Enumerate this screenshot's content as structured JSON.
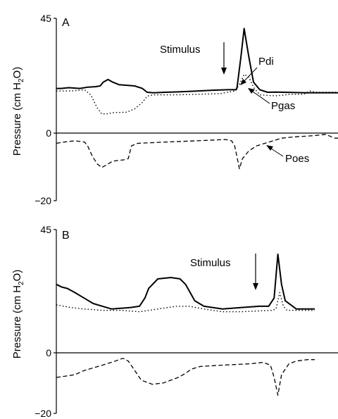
{
  "chart_data": [
    {
      "type": "line",
      "panel_label": "A",
      "ylabel_main": "Pressure (cm H",
      "ylabel_sub": "2",
      "ylabel_end": "O)",
      "ylim": [
        -20,
        45
      ],
      "yticks": [
        "45",
        "0",
        "−20"
      ],
      "grid": false,
      "stimulus_label": "Stimulus",
      "series": [
        {
          "name": "Pdi",
          "style": "solid",
          "points": [
            [
              0,
              17.5
            ],
            [
              3,
              17.5
            ],
            [
              8,
              17.8
            ],
            [
              15,
              17.5
            ],
            [
              20,
              18
            ],
            [
              25,
              18.2
            ],
            [
              28,
              18.5
            ],
            [
              30,
              20
            ],
            [
              33,
              21
            ],
            [
              36,
              20
            ],
            [
              40,
              19
            ],
            [
              50,
              18.5
            ],
            [
              55,
              17.5
            ],
            [
              58,
              16
            ],
            [
              62,
              15.8
            ],
            [
              70,
              16
            ],
            [
              80,
              16.2
            ],
            [
              90,
              16.5
            ],
            [
              100,
              16.8
            ],
            [
              110,
              17
            ],
            [
              115,
              17
            ],
            [
              115.5,
              18
            ],
            [
              118,
              30
            ],
            [
              120,
              41
            ],
            [
              123,
              30
            ],
            [
              126,
              20
            ],
            [
              130,
              17
            ],
            [
              135,
              16
            ],
            [
              140,
              16.1
            ],
            [
              160,
              15.8
            ],
            [
              180,
              15.8
            ]
          ]
        },
        {
          "name": "Pgas",
          "style": "dotted",
          "points": [
            [
              0,
              16.5
            ],
            [
              10,
              16.5
            ],
            [
              18,
              17
            ],
            [
              22,
              15
            ],
            [
              26,
              10
            ],
            [
              29,
              7.5
            ],
            [
              32,
              7.5
            ],
            [
              36,
              8
            ],
            [
              45,
              8.2
            ],
            [
              50,
              9.5
            ],
            [
              55,
              12
            ],
            [
              58,
              14.5
            ],
            [
              62,
              15
            ],
            [
              75,
              15
            ],
            [
              90,
              15.2
            ],
            [
              105,
              15.5
            ],
            [
              114,
              16.5
            ],
            [
              117,
              19
            ],
            [
              120,
              23
            ],
            [
              123,
              22
            ],
            [
              126,
              18
            ],
            [
              130,
              15
            ],
            [
              140,
              14.6
            ],
            [
              150,
              15.2
            ],
            [
              158,
              15.2
            ],
            [
              162,
              16.5
            ],
            [
              166,
              16
            ],
            [
              180,
              16
            ]
          ]
        },
        {
          "name": "Poes",
          "style": "dashed",
          "points": [
            [
              0,
              -4
            ],
            [
              5,
              -3.5
            ],
            [
              12,
              -3
            ],
            [
              18,
              -3.5
            ],
            [
              20,
              -5
            ],
            [
              23,
              -9
            ],
            [
              26,
              -12
            ],
            [
              29,
              -13.5
            ],
            [
              32,
              -12.5
            ],
            [
              36,
              -11
            ],
            [
              43,
              -10.5
            ],
            [
              46,
              -10
            ],
            [
              48,
              -5
            ],
            [
              52,
              -4
            ],
            [
              70,
              -3.5
            ],
            [
              90,
              -3
            ],
            [
              108,
              -2.5
            ],
            [
              112,
              -3
            ],
            [
              114,
              -5
            ],
            [
              116,
              -11
            ],
            [
              117,
              -14
            ],
            [
              119,
              -10
            ],
            [
              123,
              -7
            ],
            [
              128,
              -5
            ],
            [
              136,
              -3.5
            ],
            [
              144,
              -2
            ],
            [
              152,
              -1.5
            ],
            [
              165,
              -1
            ],
            [
              172,
              -0.5
            ],
            [
              178,
              -2
            ],
            [
              180,
              -2
            ]
          ]
        }
      ],
      "annotations": [
        "Pdi",
        "Pgas",
        "Poes"
      ]
    },
    {
      "type": "line",
      "panel_label": "B",
      "ylabel_main": "Pressure (cm H",
      "ylabel_sub": "2",
      "ylabel_end": "O)",
      "ylim": [
        -20,
        45
      ],
      "yticks": [
        "45",
        "0",
        "−20"
      ],
      "grid": false,
      "stimulus_label": "Stimulus",
      "series": [
        {
          "name": "Pdi",
          "style": "solid",
          "points": [
            [
              0,
              25
            ],
            [
              3,
              24
            ],
            [
              6,
              23.5
            ],
            [
              10,
              22
            ],
            [
              15,
              20
            ],
            [
              20,
              18
            ],
            [
              25,
              17
            ],
            [
              30,
              16
            ],
            [
              40,
              16.5
            ],
            [
              45,
              17
            ],
            [
              48,
              20
            ],
            [
              50,
              23.5
            ],
            [
              55,
              27
            ],
            [
              62,
              27.5
            ],
            [
              67,
              27
            ],
            [
              70,
              25
            ],
            [
              75,
              19
            ],
            [
              80,
              17
            ],
            [
              90,
              16
            ],
            [
              100,
              16.5
            ],
            [
              110,
              17
            ],
            [
              115,
              17
            ],
            [
              118,
              20
            ],
            [
              120,
              36
            ],
            [
              122,
              25
            ],
            [
              124,
              19
            ],
            [
              130,
              16
            ],
            [
              140,
              16
            ]
          ]
        },
        {
          "name": "Pgas",
          "style": "dotted",
          "points": [
            [
              0,
              17.5
            ],
            [
              8,
              16.5
            ],
            [
              15,
              16
            ],
            [
              25,
              15.5
            ],
            [
              35,
              15.5
            ],
            [
              45,
              15
            ],
            [
              55,
              16
            ],
            [
              65,
              17
            ],
            [
              72,
              17
            ],
            [
              80,
              16
            ],
            [
              90,
              15
            ],
            [
              100,
              15
            ],
            [
              110,
              15.3
            ],
            [
              117,
              15.5
            ],
            [
              119,
              16
            ],
            [
              121,
              22
            ],
            [
              123,
              17
            ],
            [
              125,
              15.5
            ],
            [
              135,
              15.5
            ],
            [
              140,
              15.5
            ]
          ]
        },
        {
          "name": "Poes",
          "style": "dashed",
          "points": [
            [
              0,
              -9
            ],
            [
              5,
              -8.5
            ],
            [
              10,
              -8
            ],
            [
              15,
              -6.5
            ],
            [
              20,
              -5.5
            ],
            [
              25,
              -4.5
            ],
            [
              32,
              -3
            ],
            [
              36,
              -2
            ],
            [
              39,
              -3
            ],
            [
              42,
              -6
            ],
            [
              46,
              -10
            ],
            [
              52,
              -11.5
            ],
            [
              58,
              -11
            ],
            [
              62,
              -10
            ],
            [
              66,
              -9
            ],
            [
              70,
              -7.5
            ],
            [
              73,
              -6
            ],
            [
              78,
              -5
            ],
            [
              90,
              -4.5
            ],
            [
              105,
              -4
            ],
            [
              112,
              -3.5
            ],
            [
              116,
              -4.5
            ],
            [
              118,
              -9
            ],
            [
              120,
              -15.5
            ],
            [
              122,
              -8
            ],
            [
              126,
              -4
            ],
            [
              130,
              -3
            ],
            [
              136,
              -2.5
            ],
            [
              140,
              -2.5
            ]
          ]
        }
      ],
      "annotations": []
    }
  ]
}
